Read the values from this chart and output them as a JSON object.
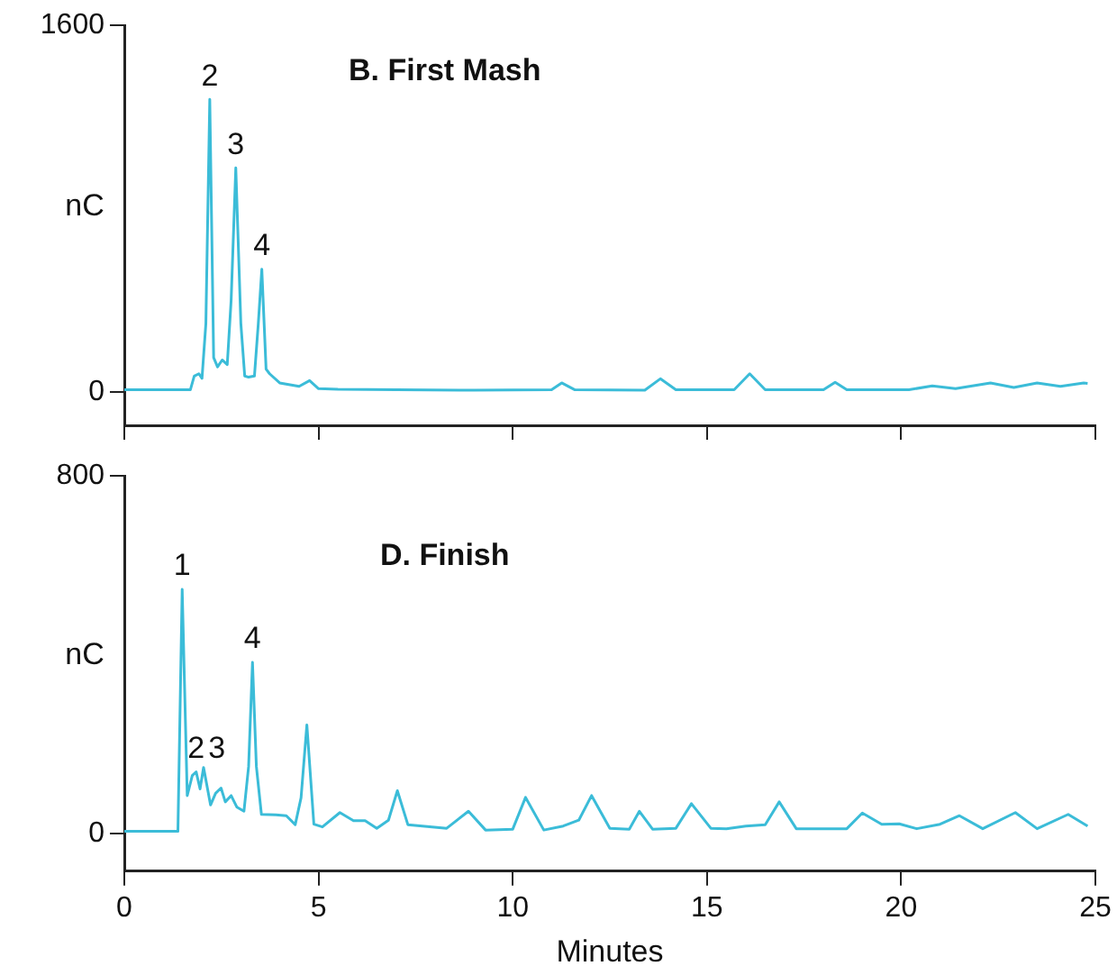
{
  "chart_data": [
    {
      "type": "line",
      "title": "B. First Mash",
      "ylabel": "nC",
      "marker": "none",
      "grid": false,
      "tick_labels": "y",
      "xlim": [
        0,
        25
      ],
      "xticks": [
        0,
        5,
        10,
        15,
        20,
        25
      ],
      "ylim": [
        -145,
        1600
      ],
      "yticks": [
        0,
        1600
      ],
      "x": [
        0,
        1.7,
        1.8,
        1.92,
        2.0,
        2.1,
        2.2,
        2.3,
        2.4,
        2.52,
        2.65,
        2.75,
        2.87,
        3.0,
        3.1,
        3.2,
        3.35,
        3.45,
        3.54,
        3.65,
        3.74,
        4.0,
        4.5,
        4.77,
        5.0,
        5.5,
        7,
        9,
        11,
        11.26,
        11.6,
        13.4,
        13.8,
        14.2,
        15.7,
        16.1,
        16.5,
        18.0,
        18.3,
        18.6,
        20.2,
        20.8,
        21.4,
        22.3,
        22.9,
        23.5,
        24.1,
        24.7,
        24.8
      ],
      "series": [
        {
          "color": "#3bbcd8",
          "values": [
            10,
            10,
            70,
            80,
            60,
            300,
            1277,
            150,
            110,
            140,
            120,
            400,
            978,
            300,
            70,
            65,
            70,
            300,
            536,
            100,
            80,
            40,
            25,
            50,
            15,
            12,
            10,
            8,
            10,
            40,
            10,
            8,
            58,
            10,
            10,
            80,
            10,
            10,
            43,
            10,
            10,
            27,
            15,
            40,
            20,
            40,
            25,
            40,
            38
          ]
        }
      ],
      "annotations": [
        {
          "text": "2",
          "x": 2.2,
          "y": 1277
        },
        {
          "text": "3",
          "x": 2.87,
          "y": 978
        },
        {
          "text": "4",
          "x": 3.54,
          "y": 536
        }
      ]
    },
    {
      "type": "line",
      "title": "D. Finish",
      "ylabel": "nC",
      "xlabel": "Minutes",
      "marker": "none",
      "grid": false,
      "xlim": [
        0,
        25
      ],
      "xticks": [
        0,
        5,
        10,
        15,
        20,
        25
      ],
      "ylim": [
        -84,
        800
      ],
      "yticks": [
        0,
        800
      ],
      "x": [
        0,
        1.38,
        1.49,
        1.62,
        1.75,
        1.85,
        1.95,
        2.04,
        2.22,
        2.35,
        2.49,
        2.6,
        2.75,
        2.9,
        3.08,
        3.2,
        3.3,
        3.4,
        3.53,
        3.9,
        4.17,
        4.4,
        4.55,
        4.7,
        4.88,
        5.1,
        5.55,
        5.9,
        6.2,
        6.5,
        6.8,
        7.03,
        7.3,
        8.3,
        8.86,
        9.3,
        10.0,
        10.33,
        10.8,
        11.3,
        11.7,
        12.03,
        12.5,
        13.0,
        13.26,
        13.6,
        14.2,
        14.6,
        15.1,
        15.5,
        16.0,
        16.5,
        16.86,
        17.3,
        18.6,
        19.0,
        19.5,
        19.95,
        20.4,
        21.0,
        21.5,
        22.1,
        22.94,
        23.5,
        24.3,
        24.8
      ],
      "series": [
        {
          "color": "#3bbcd8",
          "values": [
            5,
            5,
            546,
            85,
            130,
            138,
            100,
            148,
            64,
            90,
            102,
            71,
            85,
            59,
            50,
            150,
            383,
            150,
            43,
            42,
            40,
            20,
            80,
            243,
            21,
            15,
            47,
            29,
            29,
            12,
            30,
            96,
            20,
            12,
            50,
            8,
            10,
            81,
            8,
            17,
            30,
            85,
            12,
            10,
            50,
            10,
            12,
            67,
            12,
            11,
            17,
            20,
            71,
            11,
            11,
            46,
            21,
            22,
            11,
            21,
            40,
            11,
            47,
            11,
            43,
            17
          ]
        }
      ],
      "annotations": [
        {
          "text": "1",
          "x": 1.49,
          "y": 546
        },
        {
          "text": "2",
          "x": 1.85,
          "y": 138
        },
        {
          "text": "3",
          "x": 2.04,
          "y": 148
        },
        {
          "text": "4",
          "x": 3.3,
          "y": 383
        }
      ]
    }
  ]
}
